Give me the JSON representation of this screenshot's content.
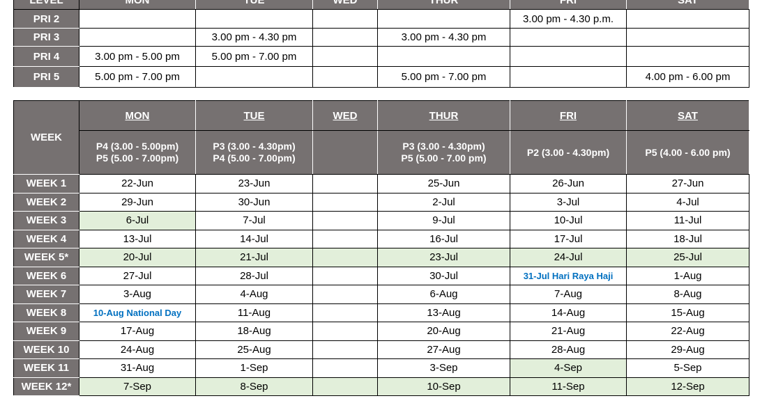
{
  "colors": {
    "header_bg": "#767171",
    "highlight": "#e2efda",
    "holiday_text": "#0070c0"
  },
  "level_table": {
    "headers": [
      "LEVEL",
      "MON",
      "TUE",
      "WED",
      "THUR",
      "FRI",
      "SAT"
    ],
    "rows": [
      {
        "level": "PRI 2",
        "cells": [
          "",
          "",
          "",
          "",
          "3.00 pm - 4.30 p.m.",
          ""
        ]
      },
      {
        "level": "PRI 3",
        "cells": [
          "",
          "3.00 pm - 4.30 pm",
          "",
          "3.00 pm - 4.30 pm",
          "",
          ""
        ]
      },
      {
        "level": "PRI 4",
        "cells": [
          "3.00 pm - 5.00 pm",
          "5.00 pm - 7.00 pm",
          "",
          "",
          "",
          ""
        ]
      },
      {
        "level": "PRI 5",
        "cells": [
          "5.00 pm - 7.00 pm",
          "",
          "",
          "5.00 pm - 7.00 pm",
          "",
          "4.00 pm - 6.00 pm"
        ]
      }
    ]
  },
  "week_table": {
    "week_label": "WEEK",
    "days": [
      "MON",
      "TUE",
      "WED",
      "THUR",
      "FRI",
      "SAT"
    ],
    "slots": [
      [
        "P4 (3.00 - 5.00pm)",
        "P5 (5.00 - 7.00pm)"
      ],
      [
        "P3 (3.00 - 4.30pm)",
        "P4 (5.00 - 7.00pm)"
      ],
      [
        "",
        ""
      ],
      [
        "P3 (3.00 - 4.30pm)",
        "P5 (5.00 - 7.00 pm)"
      ],
      [
        "P2 (3.00 - 4.30pm)",
        ""
      ],
      [
        "P5 (4.00 - 6.00 pm)",
        ""
      ]
    ],
    "rows": [
      {
        "week": "WEEK 1",
        "cells": [
          "22-Jun",
          "23-Jun",
          "",
          "25-Jun",
          "26-Jun",
          "27-Jun"
        ],
        "highlight": []
      },
      {
        "week": "WEEK 2",
        "cells": [
          "29-Jun",
          "30-Jun",
          "",
          "2-Jul",
          "3-Jul",
          "4-Jul"
        ],
        "highlight": []
      },
      {
        "week": "WEEK 3",
        "cells": [
          "6-Jul",
          "7-Jul",
          "",
          "9-Jul",
          "10-Jul",
          "11-Jul"
        ],
        "highlight": [
          0
        ]
      },
      {
        "week": "WEEK 4",
        "cells": [
          "13-Jul",
          "14-Jul",
          "",
          "16-Jul",
          "17-Jul",
          "18-Jul"
        ],
        "highlight": []
      },
      {
        "week": "WEEK 5*",
        "cells": [
          "20-Jul",
          "21-Jul",
          "",
          "23-Jul",
          "24-Jul",
          "25-Jul"
        ],
        "highlight": [
          0,
          1,
          2,
          3,
          4,
          5
        ]
      },
      {
        "week": "WEEK 6",
        "cells": [
          "27-Jul",
          "28-Jul",
          "",
          "30-Jul",
          "31-Jul Hari Raya Haji",
          "1-Aug"
        ],
        "highlight": [],
        "holiday": [
          4
        ]
      },
      {
        "week": "WEEK 7",
        "cells": [
          "3-Aug",
          "4-Aug",
          "",
          "6-Aug",
          "7-Aug",
          "8-Aug"
        ],
        "highlight": []
      },
      {
        "week": "WEEK 8",
        "cells": [
          "10-Aug National Day",
          "11-Aug",
          "",
          "13-Aug",
          "14-Aug",
          "15-Aug"
        ],
        "highlight": [],
        "holiday": [
          0
        ]
      },
      {
        "week": "WEEK 9",
        "cells": [
          "17-Aug",
          "18-Aug",
          "",
          "20-Aug",
          "21-Aug",
          "22-Aug"
        ],
        "highlight": []
      },
      {
        "week": "WEEK 10",
        "cells": [
          "24-Aug",
          "25-Aug",
          "",
          "27-Aug",
          "28-Aug",
          "29-Aug"
        ],
        "highlight": []
      },
      {
        "week": "WEEK 11",
        "cells": [
          "31-Aug",
          "1-Sep",
          "",
          "3-Sep",
          "4-Sep",
          "5-Sep"
        ],
        "highlight": [
          4
        ]
      },
      {
        "week": "WEEK 12*",
        "cells": [
          "7-Sep",
          "8-Sep",
          "",
          "10-Sep",
          "11-Sep",
          "12-Sep"
        ],
        "highlight": [
          0,
          1,
          2,
          3,
          4,
          5
        ]
      }
    ]
  }
}
